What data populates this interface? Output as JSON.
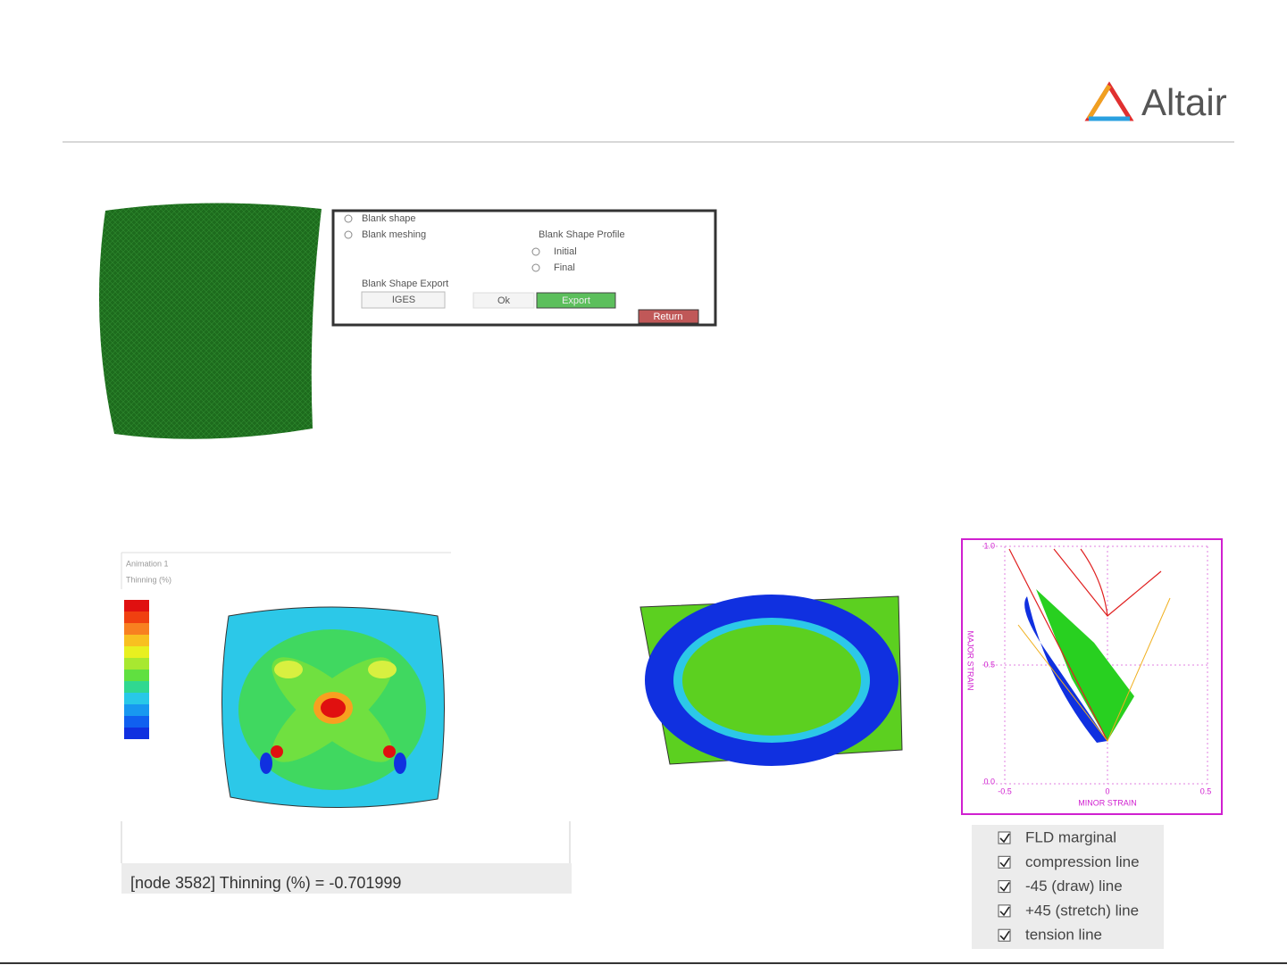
{
  "header": {
    "logo": "Altair"
  },
  "dialog": {
    "options": [
      "Blank shape",
      "Blank meshing"
    ],
    "profile": {
      "title": "Blank Shape Profile",
      "options": [
        "Initial",
        "Final"
      ]
    },
    "export": {
      "title": "Blank Shape Export",
      "format": "IGES",
      "ok": "Ok",
      "export": "Export",
      "return": "Return"
    }
  },
  "contour": {
    "labels": [
      "Animation 1",
      "Thinning (%)"
    ],
    "status": "[node 3582] Thinning (%) = -0.701999"
  },
  "fld": {
    "x_label": "MINOR STRAIN",
    "x_ticks": [
      "-0.5",
      "0",
      "0.5"
    ],
    "y_label": "MAJOR STRAIN",
    "y_ticks": [
      "1.0",
      "0.5",
      "0.0"
    ]
  },
  "fld_options": [
    "FLD marginal",
    "compression line",
    "-45 (draw) line",
    "+45 (stretch) line",
    "tension line"
  ]
}
